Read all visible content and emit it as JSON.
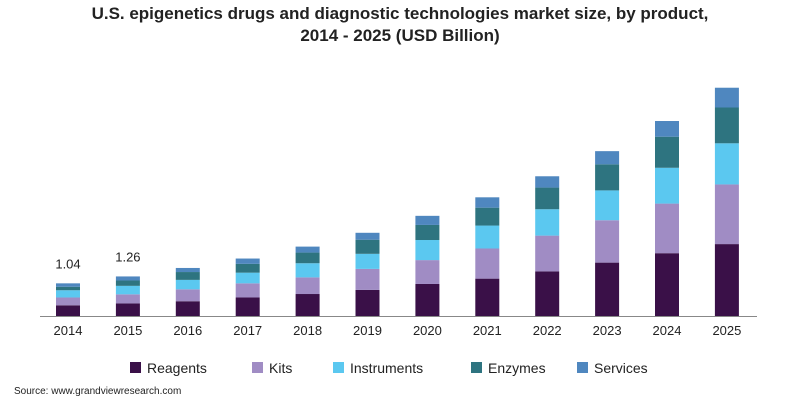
{
  "chart_data": {
    "type": "bar",
    "stacked": true,
    "title_line1": "U.S. epigenetics drugs and diagnostic technologies market size, by product,",
    "title_line2": "2014 - 2025 (USD Billion)",
    "xlabel": "",
    "ylabel": "",
    "ylim": [
      0,
      7.5
    ],
    "grid": false,
    "legend_position": "bottom",
    "categories": [
      "2014",
      "2015",
      "2016",
      "2017",
      "2018",
      "2019",
      "2020",
      "2021",
      "2022",
      "2023",
      "2024",
      "2025"
    ],
    "series": [
      {
        "name": "Reagents",
        "color": "#3a1048",
        "values": [
          0.34,
          0.4,
          0.47,
          0.59,
          0.7,
          0.83,
          1.02,
          1.19,
          1.42,
          1.7,
          2.0,
          2.29
        ]
      },
      {
        "name": "Kits",
        "color": "#a08cc4",
        "values": [
          0.25,
          0.29,
          0.38,
          0.45,
          0.53,
          0.67,
          0.76,
          0.96,
          1.14,
          1.35,
          1.58,
          1.9
        ]
      },
      {
        "name": "Instruments",
        "color": "#5bc8f0",
        "values": [
          0.23,
          0.27,
          0.3,
          0.34,
          0.45,
          0.48,
          0.64,
          0.73,
          0.84,
          0.95,
          1.14,
          1.31
        ]
      },
      {
        "name": "Enzymes",
        "color": "#2e7480",
        "values": [
          0.11,
          0.17,
          0.25,
          0.28,
          0.34,
          0.45,
          0.48,
          0.57,
          0.69,
          0.83,
          0.99,
          1.14
        ]
      },
      {
        "name": "Services",
        "color": "#4f87bf",
        "values": [
          0.11,
          0.13,
          0.13,
          0.17,
          0.19,
          0.22,
          0.29,
          0.33,
          0.36,
          0.42,
          0.5,
          0.63
        ]
      }
    ],
    "data_labels": [
      {
        "category": "2014",
        "text": "1.04"
      },
      {
        "category": "2015",
        "text": "1.26"
      }
    ]
  },
  "source": "Source: www.grandviewresearch.com"
}
